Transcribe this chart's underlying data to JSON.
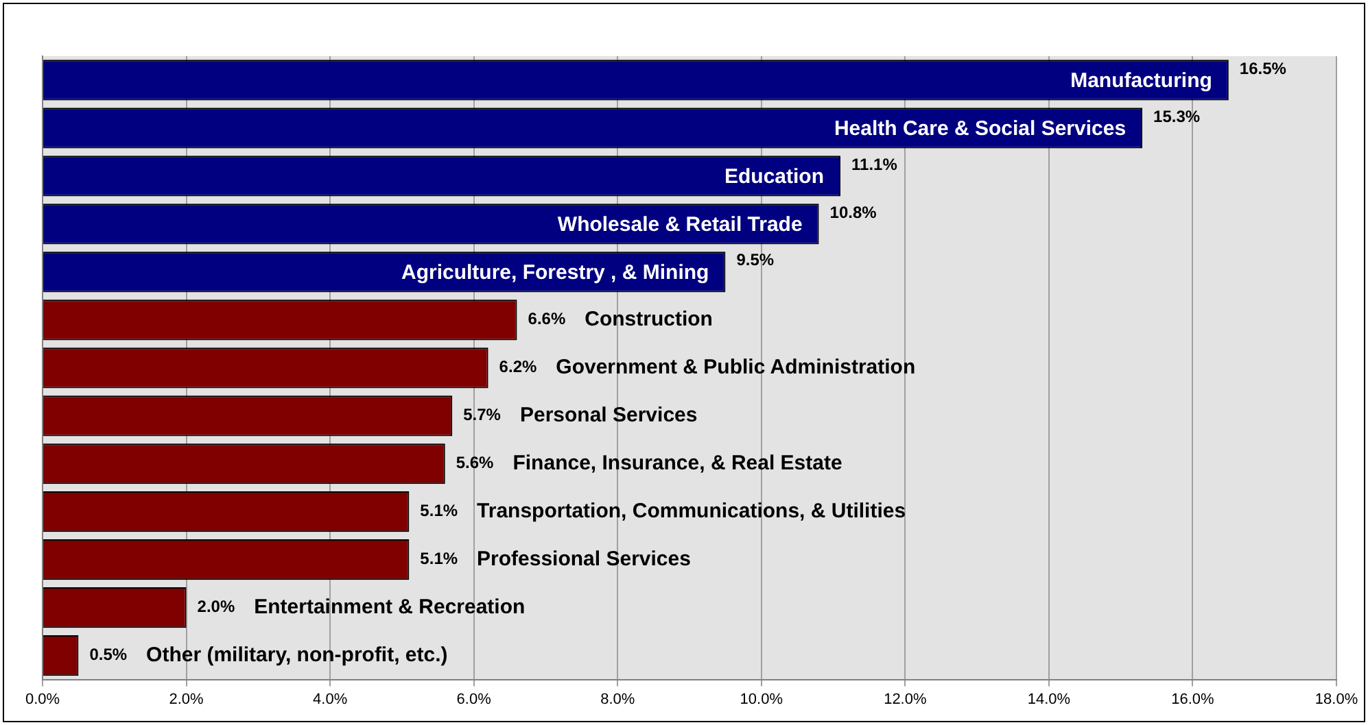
{
  "chart_data": {
    "type": "bar",
    "orientation": "horizontal",
    "categories": [
      "Manufacturing",
      "Health Care & Social Services",
      "Education",
      "Wholesale & Retail Trade",
      "Agriculture, Forestry , & Mining",
      "Construction",
      "Government & Public Administration",
      "Personal Services",
      "Finance, Insurance, & Real Estate",
      "Transportation, Communications, & Utilities",
      "Professional Services",
      "Entertainment & Recreation",
      "Other (military, non-profit, etc.)"
    ],
    "values": [
      16.5,
      15.3,
      11.1,
      10.8,
      9.5,
      6.6,
      6.2,
      5.7,
      5.6,
      5.1,
      5.1,
      2.0,
      0.5
    ],
    "value_labels": [
      "16.5%",
      "15.3%",
      "11.1%",
      "10.8%",
      "9.5%",
      "6.6%",
      "6.2%",
      "5.7%",
      "5.6%",
      "5.1%",
      "5.1%",
      "2.0%",
      "0.5%"
    ],
    "colors": [
      "#000080",
      "#000080",
      "#000080",
      "#000080",
      "#000080",
      "#800000",
      "#800000",
      "#800000",
      "#800000",
      "#800000",
      "#800000",
      "#800000",
      "#800000"
    ],
    "xlim": [
      0,
      18
    ],
    "xticks": [
      {
        "value": 0,
        "label": "0.0%"
      },
      {
        "value": 2,
        "label": "2.0%"
      },
      {
        "value": 4,
        "label": "4.0%"
      },
      {
        "value": 6,
        "label": "6.0%"
      },
      {
        "value": 8,
        "label": "8.0%"
      },
      {
        "value": 10,
        "label": "10.0%"
      },
      {
        "value": 12,
        "label": "12.0%"
      },
      {
        "value": 14,
        "label": "14.0%"
      },
      {
        "value": 16,
        "label": "16.0%"
      },
      {
        "value": 18,
        "label": "18.0%"
      }
    ],
    "grid": "x",
    "legend": false
  }
}
